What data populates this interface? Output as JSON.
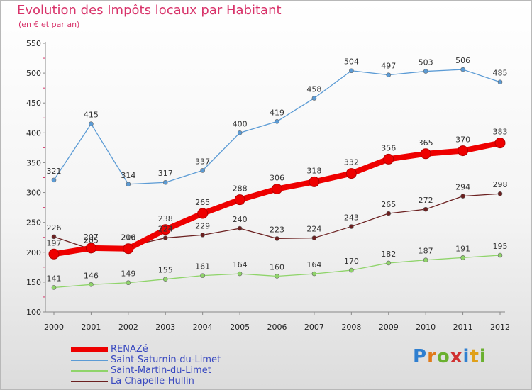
{
  "page": {
    "title": "Evolution des Impôts locaux par Habitant",
    "subtitle": "(en € et par an)",
    "logo": "Proxiti"
  },
  "chart_data": {
    "type": "line",
    "title": "Evolution des Impôts locaux par Habitant",
    "subtitle": "(en € et par an)",
    "xlabel": "",
    "ylabel": "",
    "x": [
      "2000",
      "2001",
      "2002",
      "2003",
      "2004",
      "2005",
      "2006",
      "2007",
      "2008",
      "2009",
      "2010",
      "2011",
      "2012"
    ],
    "ylim": [
      100,
      550
    ],
    "yticks": [
      "100",
      "150",
      "200",
      "250",
      "300",
      "350",
      "400",
      "450",
      "500",
      "550"
    ],
    "grid": false,
    "legend_position": "bottom-left",
    "series": [
      {
        "name": "RENAZé",
        "color": "#ee0000",
        "width": 8,
        "marker": 7,
        "values": [
          197,
          207,
          206,
          238,
          265,
          288,
          306,
          318,
          332,
          356,
          365,
          370,
          383
        ]
      },
      {
        "name": "Saint-Saturnin-du-Limet",
        "color": "#5b9bd5",
        "width": 1.3,
        "marker": 3,
        "values": [
          321,
          415,
          314,
          317,
          337,
          400,
          419,
          458,
          504,
          497,
          503,
          506,
          485
        ]
      },
      {
        "name": "Saint-Martin-du-Limet",
        "color": "#8fd46a",
        "width": 1.3,
        "marker": 3,
        "values": [
          141,
          146,
          149,
          155,
          161,
          164,
          160,
          164,
          170,
          182,
          187,
          191,
          195
        ]
      },
      {
        "name": "La Chapelle-Hullin",
        "color": "#6b2020",
        "width": 1.3,
        "marker": 3,
        "values": [
          226,
          205,
          210,
          224,
          229,
          240,
          223,
          224,
          243,
          265,
          272,
          294,
          298
        ]
      }
    ]
  }
}
